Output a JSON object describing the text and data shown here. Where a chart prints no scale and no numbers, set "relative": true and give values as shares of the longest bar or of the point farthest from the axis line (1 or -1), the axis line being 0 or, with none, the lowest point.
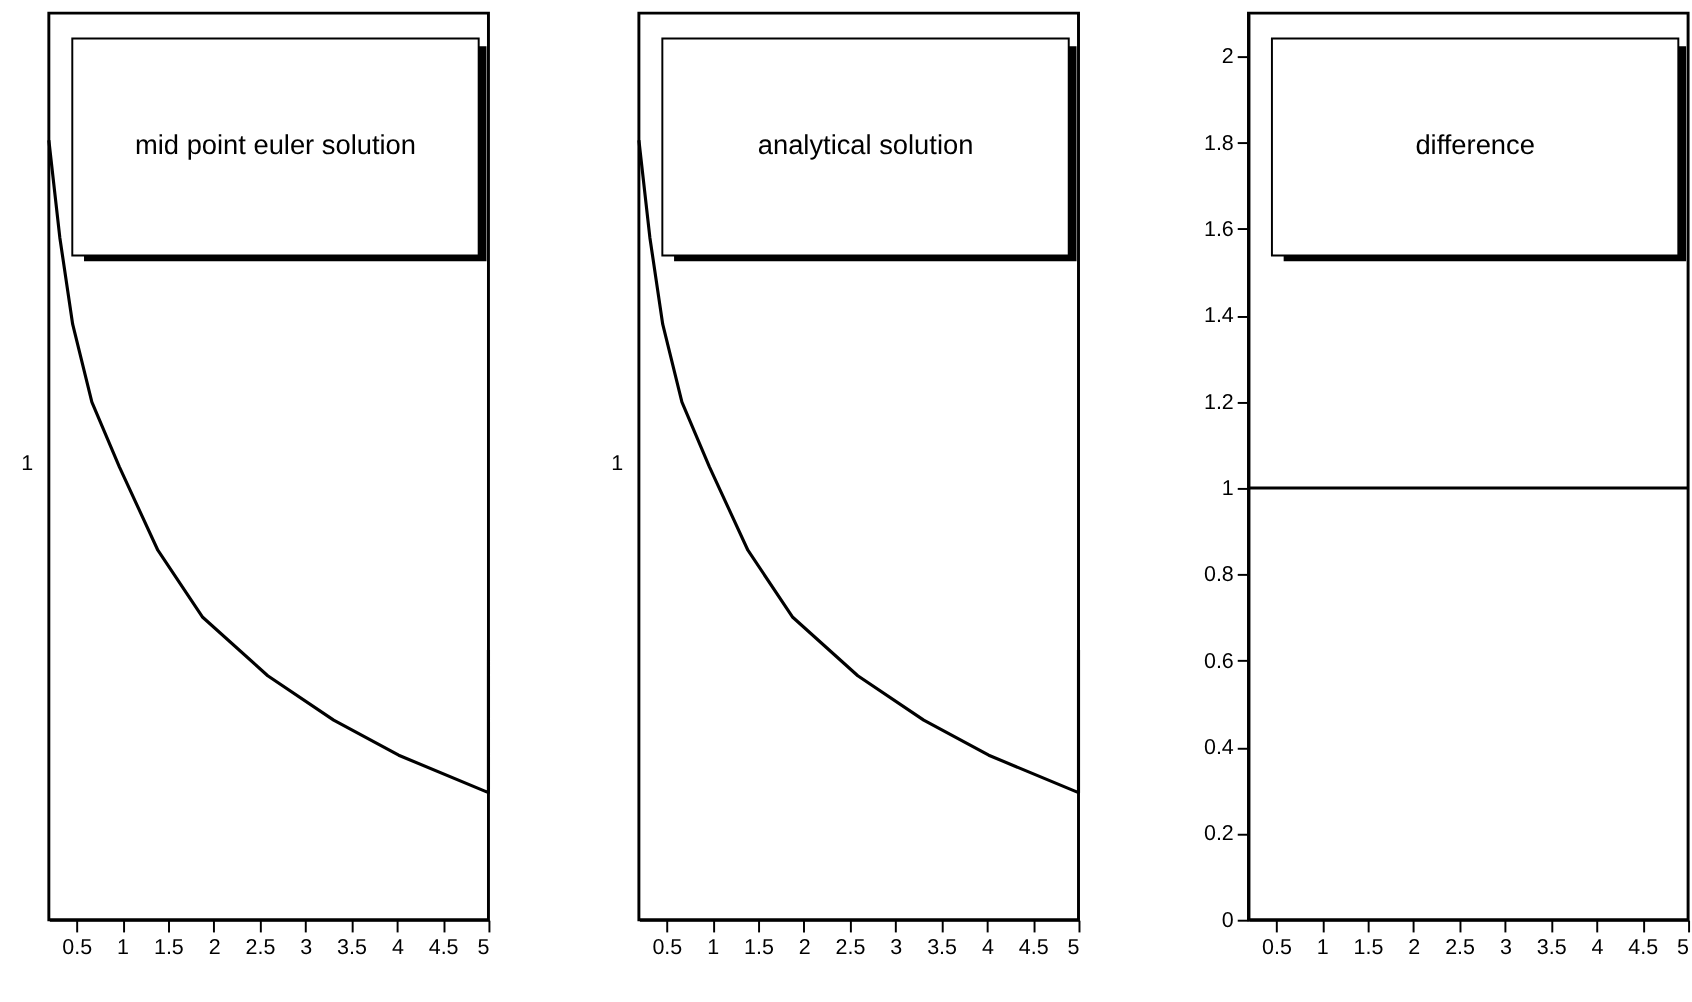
{
  "chart_data": [
    {
      "type": "line",
      "title": "mid point euler solution",
      "relative": true,
      "xlim": [
        0.2,
        5
      ],
      "xticks": [
        0.5,
        1,
        1.5,
        2,
        2.5,
        3,
        3.5,
        4,
        4.5,
        5
      ],
      "grid": false,
      "annotations": [
        "1"
      ],
      "series": [
        {
          "color": "#000000",
          "x": [
            0.2,
            0.32,
            0.46,
            0.67,
            0.97,
            1.39,
            1.88,
            2.59,
            3.31,
            4.02,
            5.0,
            5.0
          ],
          "values": [
            1.0,
            0.875,
            0.764,
            0.664,
            0.581,
            0.474,
            0.388,
            0.313,
            0.256,
            0.211,
            0.163,
            0.346
          ]
        }
      ]
    },
    {
      "type": "line",
      "title": "analytical solution",
      "relative": true,
      "xlim": [
        0.2,
        5
      ],
      "xticks": [
        0.5,
        1,
        1.5,
        2,
        2.5,
        3,
        3.5,
        4,
        4.5,
        5
      ],
      "grid": false,
      "annotations": [
        "1"
      ],
      "series": [
        {
          "color": "#000000",
          "x": [
            0.2,
            0.32,
            0.46,
            0.67,
            0.97,
            1.39,
            1.88,
            2.59,
            3.31,
            4.02,
            5.0,
            5.0
          ],
          "values": [
            1.0,
            0.875,
            0.764,
            0.664,
            0.581,
            0.474,
            0.388,
            0.313,
            0.256,
            0.211,
            0.163,
            0.346
          ]
        }
      ]
    },
    {
      "type": "line",
      "title": "difference",
      "xlim": [
        0.2,
        5
      ],
      "xticks": [
        0.5,
        1,
        1.5,
        2,
        2.5,
        3,
        3.5,
        4,
        4.5,
        5
      ],
      "ylim": [
        0,
        2.1
      ],
      "yticks": [
        0,
        0.2,
        0.4,
        0.6,
        0.8,
        1,
        1.2,
        1.4,
        1.6,
        1.8,
        2
      ],
      "grid": false,
      "series": [
        {
          "color": "#000000",
          "x": [
            0.2,
            5.0
          ],
          "values": [
            1,
            1
          ]
        }
      ]
    }
  ]
}
